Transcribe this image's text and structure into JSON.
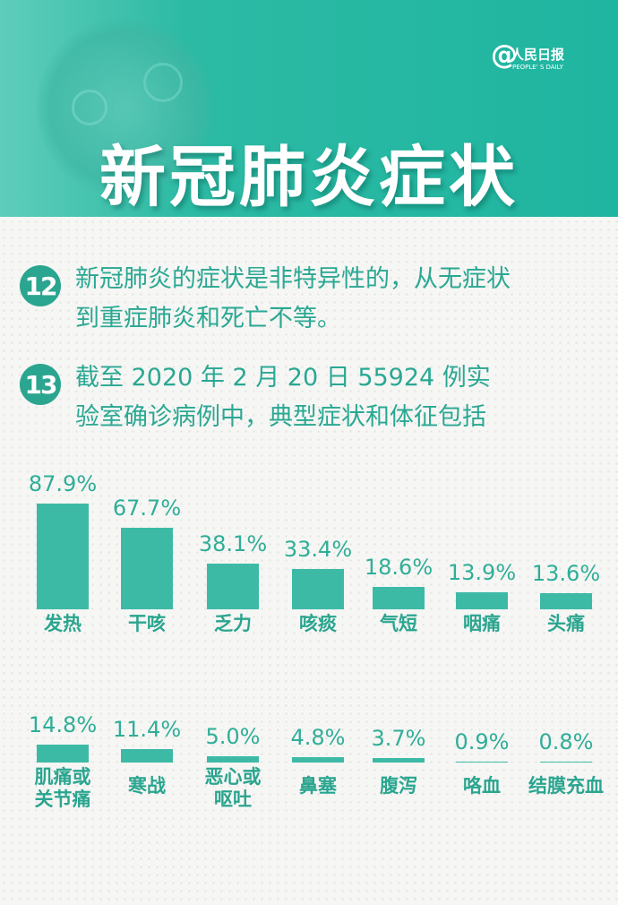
{
  "header": {
    "title": "新冠肺炎症状",
    "logo_cn": "人民日报",
    "logo_en": "PEOPLE' S DAILY",
    "logo_at": "@"
  },
  "items": [
    {
      "num": "12",
      "lines": [
        "新冠肺炎的症状是非特异性的，从无症状",
        "到重症肺炎和死亡不等。"
      ]
    },
    {
      "num": "13",
      "lines": [
        "截至 2020 年 2 月 20 日 55924 例实",
        "验室确诊病例中，典型症状和体征包括"
      ]
    }
  ],
  "colors": {
    "header": "#1fb5a0",
    "bar": "#3dbaa6",
    "text": "#2aa893"
  },
  "chart_data": {
    "type": "bar",
    "unit": "%",
    "rows": [
      {
        "categories": [
          "发热",
          "干咳",
          "乏力",
          "咳痰",
          "气短",
          "咽痛",
          "头痛"
        ],
        "values": [
          87.9,
          67.7,
          38.1,
          33.4,
          18.6,
          13.9,
          13.6
        ],
        "labels": [
          "87.9%",
          "67.7%",
          "38.1%",
          "33.4%",
          "18.6%",
          "13.9%",
          "13.6%"
        ]
      },
      {
        "categories": [
          "肌痛或\n关节痛",
          "寒战",
          "恶心或\n呕吐",
          "鼻塞",
          "腹泻",
          "咯血",
          "结膜充血"
        ],
        "values": [
          14.8,
          11.4,
          5.0,
          4.8,
          3.7,
          0.9,
          0.8
        ],
        "labels": [
          "14.8%",
          "11.4%",
          "5.0%",
          "4.8%",
          "3.7%",
          "0.9%",
          "0.8%"
        ]
      }
    ]
  }
}
